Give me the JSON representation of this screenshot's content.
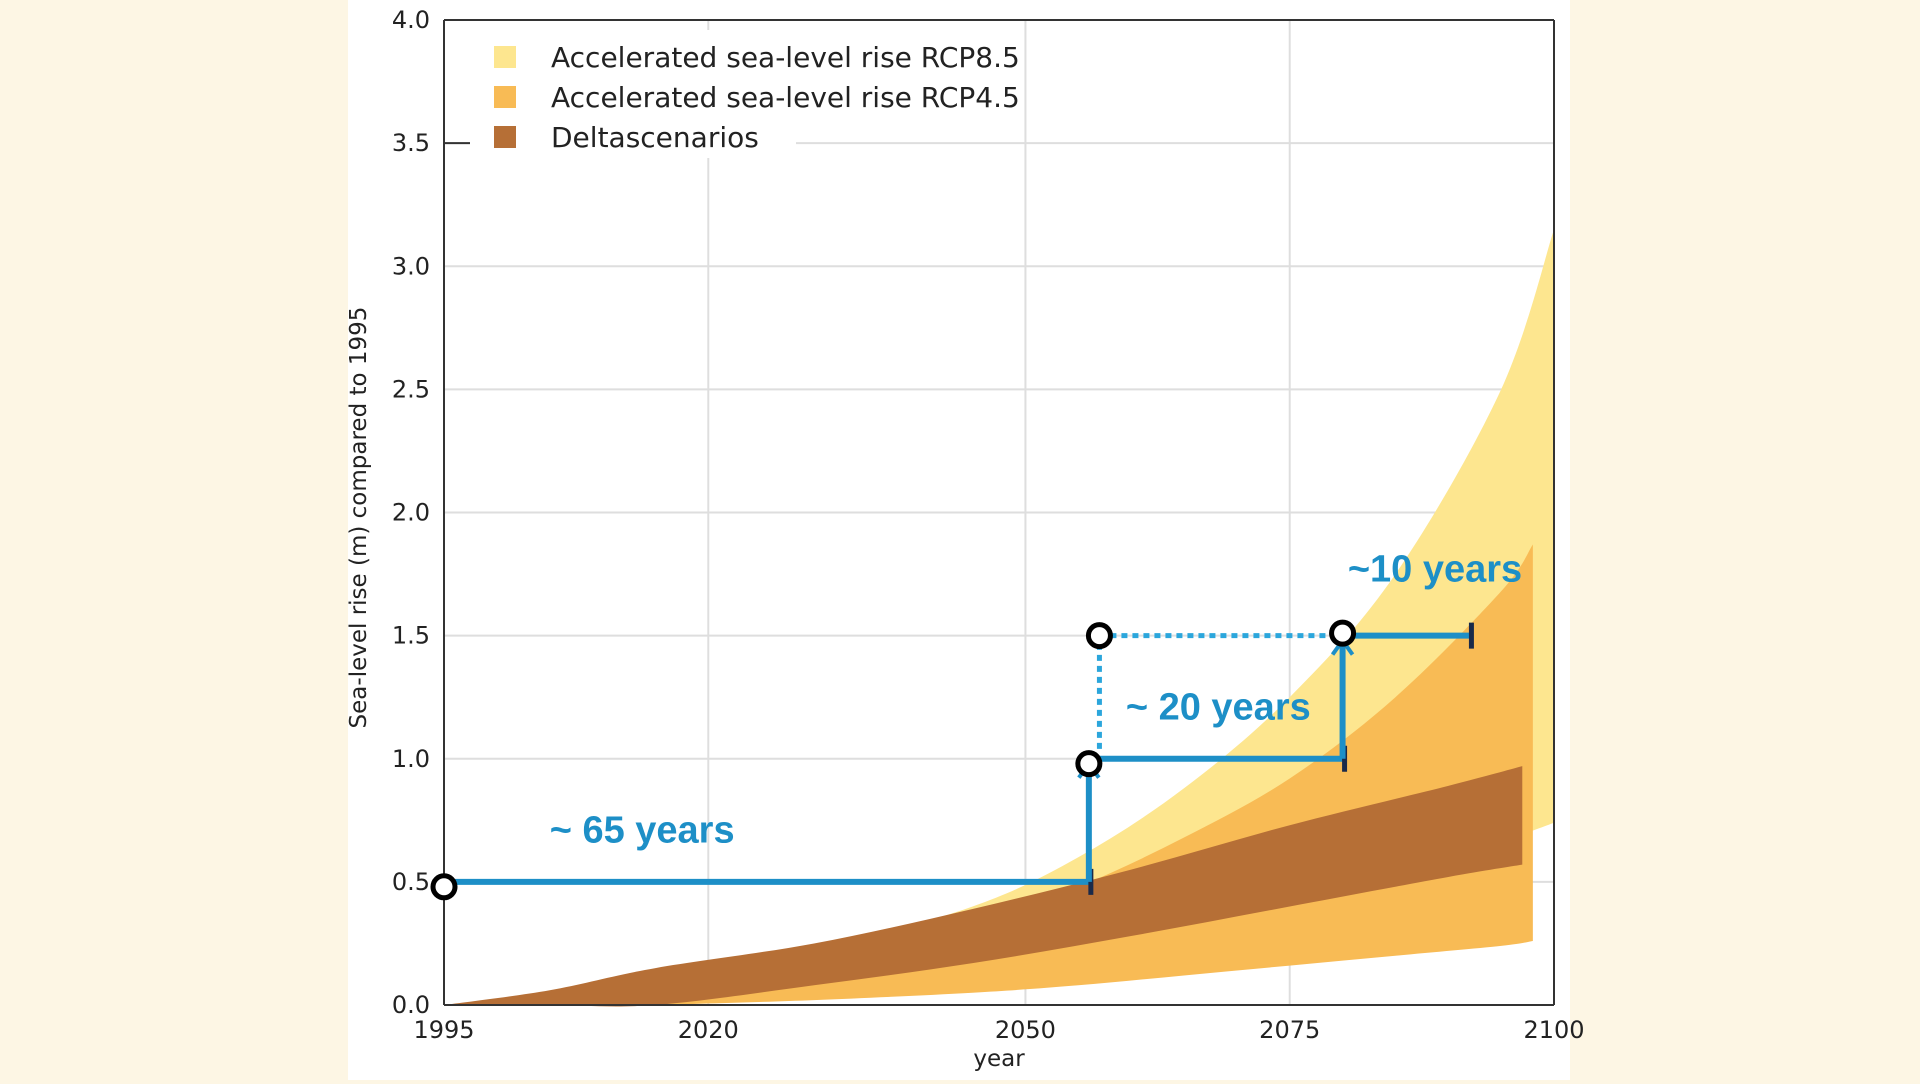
{
  "chart_data": {
    "type": "area",
    "title": "",
    "xlabel": "year",
    "ylabel": "Sea-level rise (m) compared to 1995",
    "xlim": [
      1995,
      2100
    ],
    "ylim": [
      0.0,
      4.0
    ],
    "x_ticks": [
      "1995",
      "2020",
      "2050",
      "2075",
      "2100"
    ],
    "x_tick_values": [
      1995,
      2020,
      2050,
      2075,
      2100
    ],
    "y_ticks": [
      "0.0",
      "0.5",
      "1.0",
      "1.5",
      "2.0",
      "2.5",
      "3.0",
      "3.5",
      "4.0"
    ],
    "y_tick_values": [
      0.0,
      0.5,
      1.0,
      1.5,
      2.0,
      2.5,
      3.0,
      3.5,
      4.0
    ],
    "grid": true,
    "legend_position": "top-left",
    "legend": [
      {
        "label": "Accelerated sea-level rise RCP8.5",
        "color": "#fde68f"
      },
      {
        "label": "Accelerated sea-level rise RCP4.5",
        "color": "#f8bb55"
      },
      {
        "label": "Deltascenarios",
        "color": "#b66f36"
      }
    ],
    "series": [
      {
        "name": "Accelerated sea-level rise RCP8.5",
        "color": "#fde68f",
        "x": [
          2015,
          2030,
          2045,
          2055,
          2065,
          2075,
          2085,
          2095,
          2100
        ],
        "lower": [
          0.0,
          0.03,
          0.09,
          0.15,
          0.24,
          0.36,
          0.5,
          0.66,
          0.74
        ],
        "upper": [
          0.11,
          0.22,
          0.4,
          0.6,
          0.88,
          1.25,
          1.75,
          2.5,
          3.15
        ]
      },
      {
        "name": "Accelerated sea-level rise RCP4.5",
        "color": "#f8bb55",
        "x": [
          2015,
          2030,
          2045,
          2055,
          2065,
          2075,
          2085,
          2095,
          2098
        ],
        "lower": [
          0.0,
          0.02,
          0.05,
          0.08,
          0.12,
          0.16,
          0.2,
          0.24,
          0.26
        ],
        "upper": [
          0.09,
          0.18,
          0.33,
          0.48,
          0.68,
          0.92,
          1.25,
          1.68,
          1.87
        ]
      },
      {
        "name": "Deltascenarios",
        "color": "#b66f36",
        "x": [
          1995,
          2005,
          2015,
          2030,
          2045,
          2060,
          2075,
          2090,
          2097
        ],
        "lower": [
          0.0,
          0.0,
          0.0,
          0.08,
          0.17,
          0.28,
          0.4,
          0.52,
          0.57
        ],
        "upper": [
          0.0,
          0.06,
          0.15,
          0.25,
          0.39,
          0.55,
          0.73,
          0.89,
          0.97
        ]
      }
    ],
    "annotations": [
      {
        "label": "~ 65 years",
        "x": 2005,
        "y": 0.66
      },
      {
        "label": "~ 20 years",
        "x": 2059.5,
        "y": 1.16
      },
      {
        "label": "~10 years",
        "x": 2080.5,
        "y": 1.72
      }
    ],
    "step_segments": [
      {
        "from": [
          1995,
          0.5
        ],
        "to": [
          2056,
          0.5
        ],
        "style": "solid",
        "end": "bar"
      },
      {
        "from": [
          2056,
          0.5
        ],
        "to": [
          2056,
          0.98
        ],
        "style": "solid",
        "end": "arrow"
      },
      {
        "from": [
          2057,
          1.0
        ],
        "to": [
          2080,
          1.0
        ],
        "style": "solid",
        "end": "bar"
      },
      {
        "from": [
          2080,
          1.0
        ],
        "to": [
          2080,
          1.48
        ],
        "style": "solid",
        "end": "arrow"
      },
      {
        "from": [
          2081,
          1.5
        ],
        "to": [
          2092,
          1.5
        ],
        "style": "solid",
        "end": "bar"
      },
      {
        "from": [
          2057,
          1.5
        ],
        "to": [
          2079,
          1.5
        ],
        "style": "dotted",
        "end": "none"
      },
      {
        "from": [
          2057,
          1.04
        ],
        "to": [
          2057,
          1.46
        ],
        "style": "dotted",
        "end": "none"
      }
    ],
    "markers": [
      {
        "x": 1995,
        "y": 0.48
      },
      {
        "x": 2056,
        "y": 0.98
      },
      {
        "x": 2057,
        "y": 1.5
      },
      {
        "x": 2080,
        "y": 1.51
      }
    ]
  }
}
